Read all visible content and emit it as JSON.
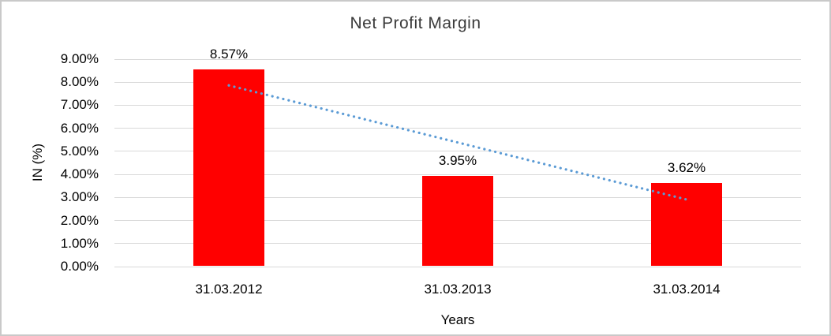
{
  "frame": {
    "background": "#ffffff",
    "border_color": "#c9c9c9"
  },
  "chart_data": {
    "type": "bar",
    "title": "Net Profit Margin",
    "xlabel": "Years",
    "ylabel": "IN (%)",
    "categories": [
      "31.03.2012",
      "31.03.2013",
      "31.03.2014"
    ],
    "values": [
      8.57,
      3.95,
      3.62
    ],
    "data_labels": [
      "8.57%",
      "3.95%",
      "3.62%"
    ],
    "y_ticks": [
      "9.00%",
      "8.00%",
      "7.00%",
      "6.00%",
      "5.00%",
      "4.00%",
      "3.00%",
      "2.00%",
      "1.00%",
      "0.00%"
    ],
    "y_tick_values": [
      9,
      8,
      7,
      6,
      5,
      4,
      3,
      2,
      1,
      0
    ],
    "ylim": [
      0,
      9
    ],
    "grid": true,
    "legend": "none",
    "bar_color": "#ff0000",
    "gridline_color": "#d9d9d9",
    "trendline": {
      "style": "dotted",
      "color": "#5b9bd5",
      "values": [
        7.86,
        2.91
      ]
    }
  }
}
